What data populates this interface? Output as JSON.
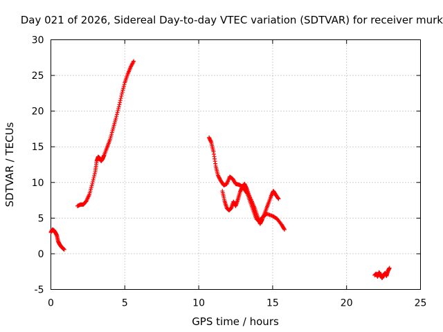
{
  "chart_data": {
    "type": "scatter",
    "title": "Day 021 of 2026, Sidereal Day-to-day VTEC variation (SDTVAR) for receiver murk",
    "xlabel": "GPS time / hours",
    "ylabel": "SDTVAR / TECUs",
    "xlim": [
      0,
      25
    ],
    "ylim": [
      -5,
      30
    ],
    "xticks": [
      "0",
      "5",
      "10",
      "15",
      "20",
      "25"
    ],
    "yticks": [
      "-5",
      "0",
      "5",
      "10",
      "15",
      "20",
      "25",
      "30"
    ],
    "grid": true,
    "marker": "plus",
    "series": [
      {
        "name": "SDTVAR",
        "color": "#ff0000",
        "segments": [
          {
            "x": [
              0.0,
              0.1,
              0.2,
              0.3,
              0.4,
              0.5,
              0.6,
              0.7,
              0.8,
              0.9
            ],
            "y": [
              3.0,
              3.4,
              3.3,
              3.0,
              2.6,
              1.7,
              1.3,
              1.0,
              0.8,
              0.6
            ]
          },
          {
            "x": [
              1.8,
              2.0,
              2.2,
              2.4,
              2.6,
              2.8,
              3.0,
              3.1,
              3.2,
              3.3,
              3.4,
              3.5,
              3.6,
              3.8,
              4.0,
              4.2,
              4.4,
              4.6,
              4.8,
              5.0,
              5.2,
              5.4,
              5.6
            ],
            "y": [
              6.7,
              6.9,
              6.9,
              7.4,
              8.3,
              9.8,
              11.5,
              13.0,
              13.6,
              13.4,
              13.0,
              13.3,
              13.8,
              14.9,
              16.0,
              17.5,
              19.0,
              20.6,
              22.4,
              24.0,
              25.2,
              26.2,
              27.0
            ]
          },
          {
            "x": [
              10.7,
              10.85,
              11.0,
              11.15,
              11.3,
              11.5,
              11.7,
              11.9,
              12.1,
              12.3,
              12.5,
              12.7,
              12.9,
              13.1,
              13.3,
              13.5,
              13.7,
              13.9,
              14.1,
              14.3,
              14.6,
              15.0,
              15.3,
              15.6,
              15.8
            ],
            "y": [
              16.3,
              15.6,
              14.3,
              12.3,
              11.0,
              10.2,
              9.6,
              9.8,
              10.8,
              10.5,
              9.8,
              9.7,
              9.5,
              9.0,
              8.4,
              7.2,
              6.0,
              4.9,
              4.5,
              5.1,
              5.6,
              5.3,
              4.9,
              4.1,
              3.4
            ]
          },
          {
            "x": [
              11.6,
              11.75,
              11.9,
              12.05,
              12.2,
              12.35,
              12.5,
              12.65,
              12.8,
              12.95,
              13.1,
              13.25,
              13.4,
              13.6,
              13.8,
              14.0,
              14.15,
              14.3,
              14.5,
              14.7,
              14.9,
              15.05,
              15.2,
              15.4
            ],
            "y": [
              8.8,
              7.4,
              6.4,
              6.1,
              6.4,
              7.3,
              6.7,
              7.6,
              8.7,
              9.4,
              9.8,
              9.1,
              8.2,
              7.3,
              6.3,
              5.1,
              4.2,
              4.8,
              5.9,
              7.0,
              8.1,
              8.8,
              8.3,
              7.7
            ]
          },
          {
            "x": [
              21.9,
              22.0,
              22.1,
              22.2,
              22.3,
              22.4,
              22.5,
              22.6,
              22.7,
              22.8,
              22.9
            ],
            "y": [
              -3.0,
              -2.8,
              -3.2,
              -2.6,
              -3.0,
              -3.4,
              -3.0,
              -2.7,
              -3.1,
              -2.4,
              -2.0
            ]
          }
        ]
      }
    ]
  }
}
